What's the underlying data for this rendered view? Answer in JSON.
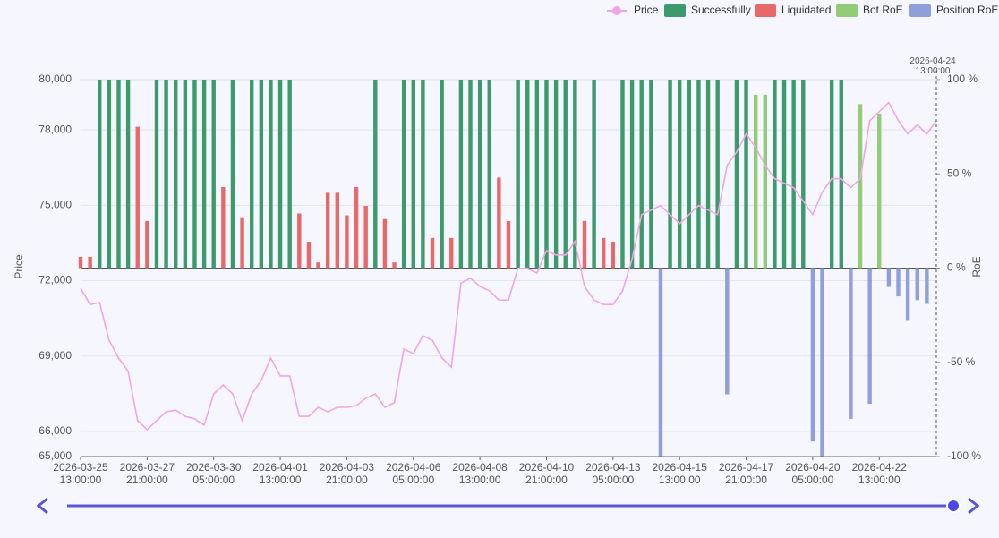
{
  "chart_data": {
    "type": "bar",
    "legend": "top-right",
    "ylabel": "Price",
    "y2label": "RoE",
    "grid": true,
    "ylim": [
      65000,
      80000
    ],
    "yticks": [
      {
        "value": 65000,
        "label": "65,000"
      },
      {
        "value": 66000,
        "label": "66,000"
      },
      {
        "value": 69000,
        "label": "69,000"
      },
      {
        "value": 72000,
        "label": "72,000"
      },
      {
        "value": 75000,
        "label": "75,000"
      },
      {
        "value": 78000,
        "label": "78,000"
      },
      {
        "value": 80000,
        "label": "80,000"
      }
    ],
    "y2lim": [
      -100,
      100
    ],
    "y2ticks": [
      {
        "value": -100,
        "label": "-100 %"
      },
      {
        "value": -50,
        "label": "-50 %"
      },
      {
        "value": 0,
        "label": "0 %"
      },
      {
        "value": 50,
        "label": "50 %"
      },
      {
        "value": 100,
        "label": "100 %"
      }
    ],
    "categories": [
      "2026-03-25 13:00:00",
      null,
      null,
      null,
      null,
      null,
      null,
      "2026-03-27 21:00:00",
      null,
      null,
      null,
      null,
      null,
      null,
      "2026-03-30 05:00:00",
      null,
      null,
      null,
      null,
      null,
      null,
      "2026-04-01 13:00:00",
      null,
      null,
      null,
      null,
      null,
      null,
      "2026-04-03 21:00:00",
      null,
      null,
      null,
      null,
      null,
      null,
      "2026-04-06 05:00:00",
      null,
      null,
      null,
      null,
      null,
      null,
      "2026-04-08 13:00:00",
      null,
      null,
      null,
      null,
      null,
      null,
      "2026-04-10 21:00:00",
      null,
      null,
      null,
      null,
      null,
      null,
      "2026-04-13 05:00:00",
      null,
      null,
      null,
      null,
      null,
      null,
      "2026-04-15 13:00:00",
      null,
      null,
      null,
      null,
      null,
      null,
      "2026-04-17 21:00:00",
      null,
      null,
      null,
      null,
      null,
      null,
      "2026-04-20 05:00:00",
      null,
      null,
      null,
      null,
      null,
      null,
      "2026-04-22 13:00:00",
      null,
      null,
      null,
      null,
      null,
      "2026-04-24 13:00:00"
    ],
    "series": [
      {
        "name": "Price",
        "type": "line",
        "color": "#f0a6e6",
        "values": [
          71700,
          71050,
          71130,
          69630,
          68920,
          68390,
          66430,
          66070,
          66430,
          66780,
          66850,
          66600,
          66500,
          66250,
          67490,
          67850,
          67490,
          66430,
          67490,
          68030,
          68920,
          68210,
          68210,
          66600,
          66600,
          66960,
          66780,
          66960,
          66960,
          67030,
          67320,
          67490,
          66960,
          67140,
          69280,
          69100,
          69810,
          69630,
          68920,
          68560,
          71900,
          72100,
          71770,
          71600,
          71230,
          71230,
          72490,
          72490,
          72300,
          73200,
          73020,
          73020,
          73560,
          71770,
          71230,
          71050,
          71050,
          71590,
          72850,
          74630,
          74810,
          74990,
          74630,
          74270,
          74630,
          74990,
          74810,
          74630,
          76590,
          77120,
          77840,
          77300,
          76590,
          76060,
          75880,
          75700,
          75170,
          74630,
          75520,
          76060,
          76060,
          75700,
          76060,
          78370,
          78730,
          79090,
          78370,
          77840,
          78200,
          77840,
          78370
        ]
      },
      {
        "name": "Successfully",
        "type": "bar",
        "axis": "y2",
        "color": "#3d9a6c",
        "values": [
          null,
          null,
          100,
          100,
          100,
          100,
          null,
          null,
          100,
          100,
          100,
          100,
          100,
          100,
          100,
          null,
          100,
          null,
          100,
          100,
          100,
          100,
          100,
          null,
          null,
          null,
          null,
          null,
          null,
          null,
          null,
          100,
          null,
          null,
          100,
          100,
          100,
          null,
          100,
          null,
          100,
          100,
          100,
          100,
          null,
          null,
          100,
          100,
          100,
          100,
          100,
          100,
          100,
          null,
          100,
          null,
          null,
          100,
          100,
          100,
          100,
          null,
          100,
          100,
          100,
          100,
          100,
          100,
          null,
          100,
          100,
          null,
          null,
          100,
          100,
          100,
          100,
          null,
          null,
          100,
          100,
          null,
          null,
          null,
          null,
          null,
          null,
          null,
          null,
          null,
          null
        ]
      },
      {
        "name": "Liquidated",
        "type": "bar",
        "axis": "y2",
        "color": "#e8696a",
        "values": [
          6,
          6,
          null,
          null,
          null,
          null,
          75,
          25,
          null,
          null,
          null,
          null,
          null,
          null,
          null,
          43,
          null,
          27,
          null,
          null,
          null,
          null,
          null,
          29,
          14,
          3,
          40,
          40,
          28,
          43,
          33,
          null,
          26,
          3,
          null,
          null,
          null,
          16,
          null,
          16,
          null,
          null,
          null,
          null,
          48,
          25,
          null,
          null,
          null,
          null,
          null,
          null,
          null,
          25,
          null,
          16,
          14,
          null,
          null,
          null,
          null,
          null,
          null,
          null,
          null,
          null,
          null,
          null,
          null,
          null,
          null,
          null,
          null,
          null,
          null,
          null,
          null,
          null,
          null,
          null,
          null,
          null,
          null,
          null,
          null,
          null,
          null,
          null,
          null,
          null,
          null
        ]
      },
      {
        "name": "Bot RoE",
        "type": "bar",
        "axis": "y2",
        "color": "#92cc76",
        "values": [
          null,
          null,
          null,
          null,
          null,
          null,
          null,
          null,
          null,
          null,
          null,
          null,
          null,
          null,
          null,
          null,
          null,
          null,
          null,
          null,
          null,
          null,
          null,
          null,
          null,
          null,
          null,
          null,
          null,
          null,
          null,
          null,
          null,
          null,
          null,
          null,
          null,
          null,
          null,
          null,
          null,
          null,
          null,
          null,
          null,
          null,
          null,
          null,
          null,
          null,
          null,
          null,
          null,
          null,
          null,
          null,
          null,
          null,
          null,
          null,
          null,
          null,
          null,
          null,
          null,
          null,
          null,
          null,
          null,
          null,
          null,
          92,
          92,
          null,
          null,
          null,
          null,
          null,
          null,
          null,
          null,
          null,
          87,
          null,
          82,
          null,
          null,
          null,
          null,
          null,
          null
        ]
      },
      {
        "name": "Position RoE",
        "type": "bar",
        "axis": "y2",
        "color": "#8e9fdc",
        "values": [
          null,
          null,
          null,
          null,
          null,
          null,
          null,
          null,
          null,
          null,
          null,
          null,
          null,
          null,
          null,
          null,
          null,
          null,
          null,
          null,
          null,
          null,
          null,
          null,
          null,
          null,
          null,
          null,
          null,
          null,
          null,
          null,
          null,
          null,
          null,
          null,
          null,
          null,
          null,
          null,
          null,
          null,
          null,
          null,
          null,
          null,
          null,
          null,
          null,
          null,
          null,
          null,
          null,
          null,
          null,
          null,
          null,
          null,
          null,
          null,
          null,
          -100,
          null,
          null,
          null,
          null,
          null,
          null,
          -67,
          null,
          null,
          null,
          null,
          null,
          null,
          null,
          null,
          -92,
          -100,
          null,
          null,
          -80,
          null,
          -72,
          null,
          -10,
          -15,
          -28,
          -17,
          -19,
          null
        ]
      }
    ]
  }
}
